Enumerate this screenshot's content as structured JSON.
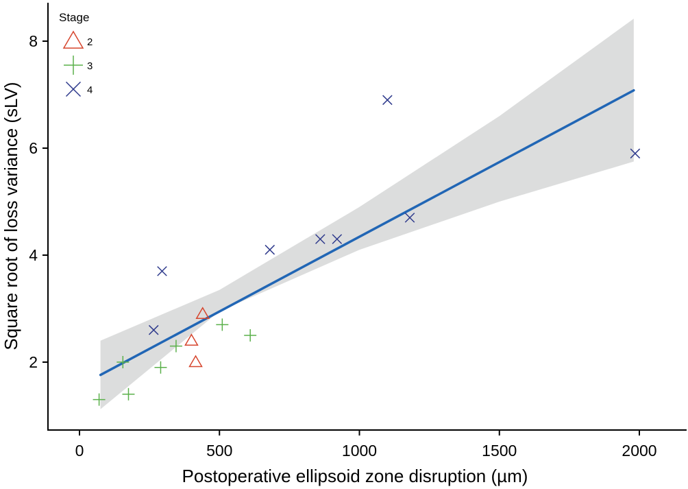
{
  "chart_data": {
    "type": "scatter",
    "title": "",
    "xlabel": "Postoperative ellipsoid zone disruption (µm)",
    "ylabel": "Square root of loss variance (sLV)",
    "xlim": [
      -110,
      2150
    ],
    "ylim": [
      0.9,
      8.6
    ],
    "xticks": [
      0,
      500,
      1000,
      1500,
      2000
    ],
    "yticks": [
      2,
      4,
      6,
      8
    ],
    "grid": false,
    "legend": {
      "title": "Stage",
      "position": "top-left",
      "entries": [
        {
          "label": "2",
          "marker": "triangle",
          "color": "#d6452d"
        },
        {
          "label": "3",
          "marker": "plus",
          "color": "#5ab04a"
        },
        {
          "label": "4",
          "marker": "x",
          "color": "#2e3a8c"
        }
      ]
    },
    "series": [
      {
        "name": "2",
        "marker": "triangle",
        "color": "#d6452d",
        "points": [
          [
            440,
            2.9
          ],
          [
            400,
            2.4
          ],
          [
            415,
            2.0
          ]
        ]
      },
      {
        "name": "3",
        "marker": "plus",
        "color": "#5ab04a",
        "points": [
          [
            70,
            1.3
          ],
          [
            155,
            2.0
          ],
          [
            175,
            1.4
          ],
          [
            290,
            1.9
          ],
          [
            345,
            2.3
          ],
          [
            510,
            2.7
          ],
          [
            610,
            2.5
          ]
        ]
      },
      {
        "name": "4",
        "marker": "x",
        "color": "#2e3a8c",
        "points": [
          [
            265,
            2.6
          ],
          [
            295,
            3.7
          ],
          [
            680,
            4.1
          ],
          [
            860,
            4.3
          ],
          [
            920,
            4.3
          ],
          [
            1100,
            6.9
          ],
          [
            1180,
            4.7
          ],
          [
            1985,
            5.9
          ]
        ]
      }
    ],
    "regression": {
      "color": "#2166b5",
      "band_color": "#dcdddd",
      "line": [
        [
          75,
          1.76
        ],
        [
          1980,
          7.08
        ]
      ],
      "band_upper": [
        [
          75,
          2.4
        ],
        [
          500,
          3.35
        ],
        [
          1000,
          4.9
        ],
        [
          1500,
          6.6
        ],
        [
          1980,
          8.42
        ]
      ],
      "band_lower": [
        [
          75,
          1.12
        ],
        [
          500,
          2.95
        ],
        [
          1000,
          4.1
        ],
        [
          1500,
          5.0
        ],
        [
          1980,
          5.75
        ]
      ]
    }
  }
}
